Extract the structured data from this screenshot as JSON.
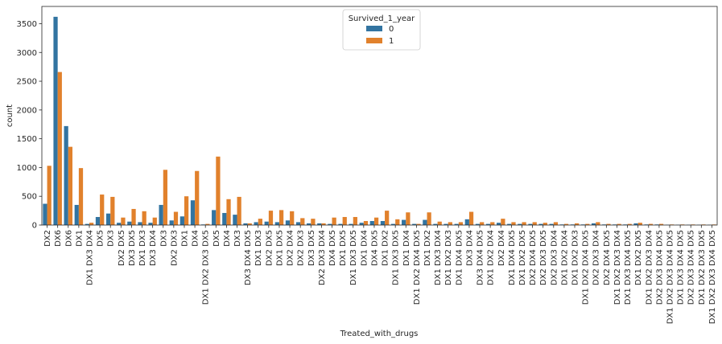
{
  "chart_data": {
    "type": "bar",
    "xlabel": "Treated_with_drugs",
    "ylabel": "count",
    "ylim": [
      0,
      3800
    ],
    "yticks": [
      0,
      500,
      1000,
      1500,
      2000,
      2500,
      3000,
      3500
    ],
    "legend": {
      "title": "Survived_1_year",
      "placement": "top-center"
    },
    "categories": [
      "DX2",
      "DX6",
      "DX6",
      "DX1",
      "DX1 DX3 DX4",
      "DX5",
      "DX3",
      "DX2 DX5",
      "DX3 DX5",
      "DX1 DX3",
      "DX3 DX4",
      "DX3",
      "DX2 DX3",
      "DX1",
      "DX4",
      "DX1 DX2 DX3 DX5",
      "DX5",
      "DX4",
      "DX3",
      "DX3 DX4 DX5",
      "DX1 DX3",
      "DX2 DX5",
      "DX1 DX5",
      "DX2 DX4",
      "DX2 DX3",
      "DX3 DX5",
      "DX2 DX3 DX4",
      "DX4 DX5",
      "DX1 DX5",
      "DX1 DX3 DX5",
      "DX1 DX4",
      "DX4 DX5",
      "DX1 DX2",
      "DX1 DX3 DX5",
      "DX1 DX4",
      "DX1 DX2 DX4 DX5",
      "DX1 DX2",
      "DX1 DX3 DX4",
      "DX1 DX2 DX3",
      "DX1 DX4 DX5",
      "DX3 DX4",
      "DX3 DX4 DX5",
      "DX1 DX2 DX4",
      "DX2 DX4",
      "DX1 DX4 DX5",
      "DX1 DX2 DX5",
      "DX2 DX4 DX5",
      "DX2 DX3 DX5",
      "DX2 DX3 DX4",
      "DX1 DX2 DX4",
      "DX1 DX2 DX3",
      "DX1 DX2 DX4 DX5",
      "DX2 DX3 DX4",
      "DX2 DX4 DX5",
      "DX1 DX2 DX3 DX4",
      "DX1 DX3 DX4 DX5",
      "DX1 DX2 DX5",
      "DX1 DX2 DX3 DX4",
      "DX2 DX3 DX4 DX5",
      "DX1 DX2 DX3 DX4 DX5",
      "DX1 DX3 DX4 DX5",
      "DX2 DX3 DX4 DX5",
      "DX1 DX2 DX3 DX5",
      "DX1 DX2 DX3 DX4 DX5"
    ],
    "series": [
      {
        "name": "0",
        "color": "#3274a1",
        "values": [
          370,
          3620,
          1720,
          350,
          20,
          140,
          200,
          40,
          60,
          50,
          40,
          350,
          80,
          150,
          430,
          10,
          260,
          210,
          180,
          30,
          50,
          60,
          50,
          80,
          50,
          30,
          30,
          20,
          20,
          20,
          40,
          70,
          70,
          20,
          90,
          20,
          90,
          20,
          20,
          20,
          100,
          20,
          20,
          40,
          20,
          20,
          20,
          20,
          20,
          10,
          10,
          10,
          30,
          10,
          10,
          10,
          30,
          10,
          10,
          5,
          5,
          5,
          5,
          5
        ]
      },
      {
        "name": "1",
        "color": "#e1812c",
        "values": [
          1030,
          2660,
          1360,
          990,
          40,
          530,
          490,
          130,
          280,
          240,
          130,
          960,
          230,
          500,
          940,
          20,
          1190,
          450,
          490,
          30,
          110,
          250,
          260,
          240,
          120,
          110,
          30,
          130,
          140,
          140,
          70,
          130,
          250,
          100,
          220,
          20,
          220,
          60,
          50,
          50,
          230,
          50,
          50,
          110,
          50,
          50,
          50,
          40,
          50,
          20,
          30,
          20,
          50,
          20,
          20,
          20,
          40,
          20,
          20,
          10,
          10,
          10,
          10,
          10
        ]
      }
    ]
  }
}
